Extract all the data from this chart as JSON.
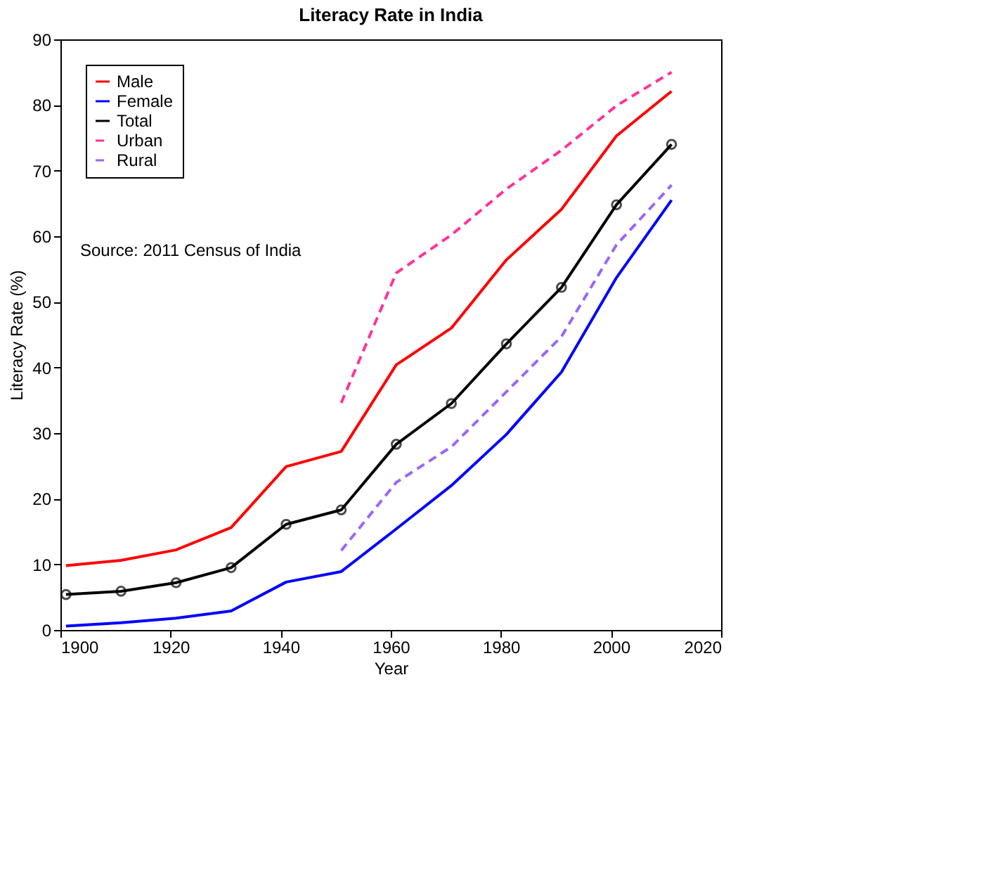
{
  "chart_data": {
    "type": "line",
    "title": "Literacy Rate in India",
    "xlabel": "Year",
    "ylabel": "Literacy Rate (%)",
    "x": [
      1901,
      1911,
      1921,
      1931,
      1941,
      1951,
      1961,
      1971,
      1981,
      1991,
      2001,
      2011
    ],
    "series": [
      {
        "name": "Male",
        "color": "#ff0000",
        "line_style": "solid",
        "marker": "none",
        "values": [
          9.8,
          10.6,
          12.2,
          15.6,
          24.9,
          27.2,
          40.4,
          46.0,
          56.4,
          64.1,
          75.3,
          82.1
        ]
      },
      {
        "name": "Female",
        "color": "#0000ff",
        "line_style": "solid",
        "marker": "none",
        "values": [
          0.6,
          1.1,
          1.8,
          2.9,
          7.3,
          8.9,
          15.4,
          22.0,
          29.8,
          39.3,
          53.7,
          65.5
        ]
      },
      {
        "name": "Total",
        "color": "#000000",
        "line_style": "solid",
        "marker": "circle",
        "values": [
          5.4,
          5.9,
          7.2,
          9.5,
          16.1,
          18.3,
          28.3,
          34.5,
          43.6,
          52.2,
          64.8,
          74.0
        ]
      },
      {
        "name": "Urban",
        "color": "#ff3399",
        "line_style": "dashed",
        "marker": "none",
        "values": [
          null,
          null,
          null,
          null,
          null,
          34.6,
          54.4,
          60.2,
          67.2,
          73.1,
          79.9,
          85.0
        ]
      },
      {
        "name": "Rural",
        "color": "#9966ff",
        "line_style": "dashed",
        "marker": "none",
        "values": [
          null,
          null,
          null,
          null,
          null,
          12.1,
          22.5,
          27.9,
          36.3,
          44.7,
          58.7,
          67.8
        ]
      }
    ],
    "xlim": [
      1900,
      2020
    ],
    "xticks": [
      1900,
      1920,
      1940,
      1960,
      1980,
      2000,
      2020
    ],
    "ylim": [
      0,
      90
    ],
    "yticks": [
      0,
      10,
      20,
      30,
      40,
      50,
      60,
      70,
      80,
      90
    ],
    "grid": false,
    "legend": "top left",
    "annotations": [
      "Source: 2011 Census of India"
    ]
  }
}
